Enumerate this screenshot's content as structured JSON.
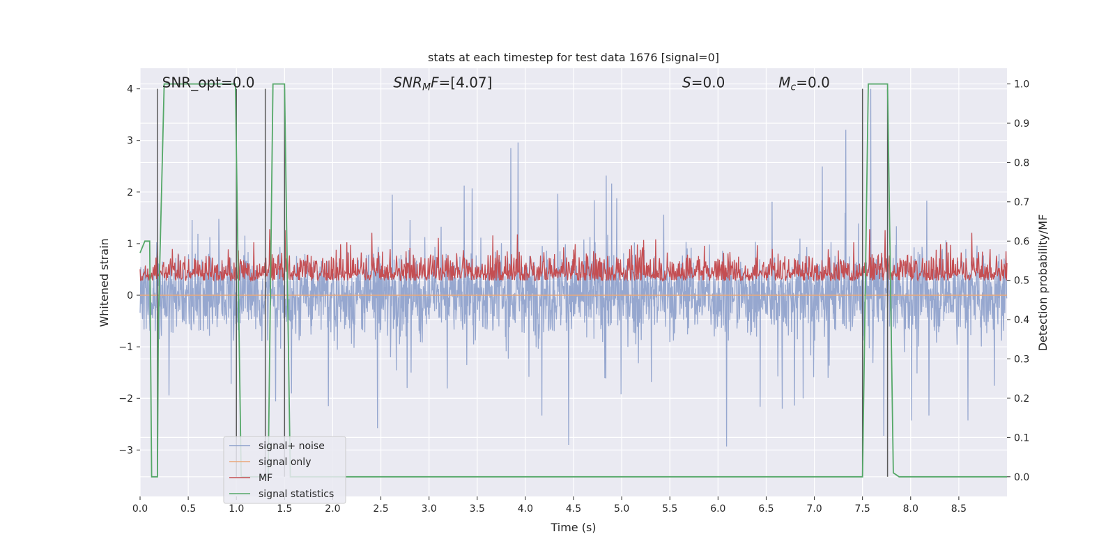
{
  "chart_data": {
    "type": "line",
    "title": "stats at each timestep for test data 1676 [signal=0]",
    "xlabel": "Time (s)",
    "ylabel": "Whitened strain",
    "y2label": "Detection probability/MF",
    "xlim": [
      0.0,
      9.0
    ],
    "ylim": [
      -3.9,
      4.4
    ],
    "y2lim": [
      -0.05,
      1.04
    ],
    "xticks": [
      "0.0",
      "0.5",
      "1.0",
      "1.5",
      "2.0",
      "2.5",
      "3.0",
      "3.5",
      "4.0",
      "4.5",
      "5.0",
      "5.5",
      "6.0",
      "6.5",
      "7.0",
      "7.5",
      "8.0",
      "8.5"
    ],
    "yticks": [
      "−3",
      "−2",
      "−1",
      "0",
      "1",
      "2",
      "3",
      "4"
    ],
    "y2ticks": [
      "0.0",
      "0.1",
      "0.2",
      "0.3",
      "0.4",
      "0.5",
      "0.6",
      "0.7",
      "0.8",
      "0.9",
      "1.0"
    ],
    "grid": true,
    "legend_position": "lower-left",
    "annotations": [
      {
        "text": "SNR_opt=0.0",
        "x": 0.2
      },
      {
        "text": "SNR_MF=[4.07]",
        "x": 2.6
      },
      {
        "text": "S=0.0",
        "x": 5.6
      },
      {
        "text": "M_c=0.0",
        "x": 6.6
      }
    ],
    "series": [
      {
        "name": "signal+ noise",
        "color": "#8da0cb",
        "kind": "noise",
        "description_range": [
          -3.5,
          4.0
        ]
      },
      {
        "name": "signal only",
        "color": "#e9a87a",
        "kind": "flat",
        "value": 0.0
      },
      {
        "name": "MF",
        "color": "#c44e52",
        "kind": "mf",
        "range": [
          0.0,
          1.0
        ]
      },
      {
        "name": "signal statistics",
        "color": "#55a868",
        "axis": "right",
        "x": [
          0.0,
          0.05,
          0.1,
          0.12,
          0.18,
          0.19,
          0.25,
          0.3,
          0.99,
          1.05,
          1.33,
          1.38,
          1.5,
          1.56,
          7.48,
          7.5,
          7.56,
          7.76,
          7.82,
          7.88,
          9.0
        ],
        "y": [
          0.57,
          0.6,
          0.6,
          0.0,
          0.0,
          0.4,
          1.0,
          1.0,
          1.0,
          0.0,
          0.0,
          1.0,
          1.0,
          0.0,
          0.0,
          0.0,
          1.0,
          1.0,
          0.01,
          0.0,
          0.0
        ]
      }
    ],
    "vlines": [
      0.18,
      1.0,
      1.3,
      1.5,
      7.5,
      7.76
    ],
    "vline_color": "#595959"
  },
  "legend": {
    "items": [
      {
        "label": "signal+ noise",
        "color": "#8da0cb"
      },
      {
        "label": "signal only",
        "color": "#e9a87a"
      },
      {
        "label": "MF",
        "color": "#c44e52"
      },
      {
        "label": "signal statistics",
        "color": "#55a868"
      }
    ]
  }
}
